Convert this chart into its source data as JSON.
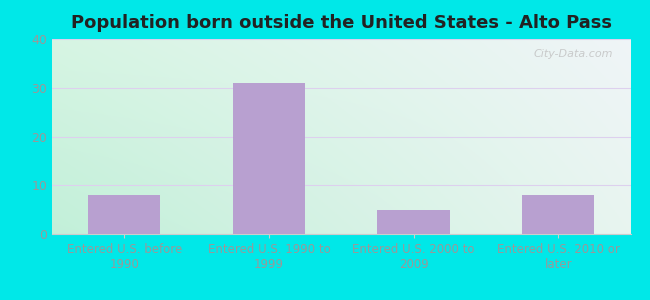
{
  "title": "Population born outside the United States - Alto Pass",
  "categories": [
    "Entered U.S. before\n1990",
    "Entered U.S. 1990 to\n1999",
    "Entered U.S. 2000 to\n2009",
    "Entered U.S. 2010 or\nlater"
  ],
  "values": [
    8,
    31,
    5,
    8
  ],
  "bar_color": "#b8a0d0",
  "ylim": [
    0,
    40
  ],
  "yticks": [
    0,
    10,
    20,
    30,
    40
  ],
  "background_outer": "#00e8e8",
  "bg_color_topleft": "#d6f5e3",
  "bg_color_topright": "#f0f5f8",
  "bg_color_bottomleft": "#c2f0d8",
  "bg_color_bottomright": "#e8f5ef",
  "grid_color": "#ddd0ee",
  "title_fontsize": 13,
  "tick_label_color": "#999999",
  "xlabel_color": "#999999",
  "watermark": "City-Data.com"
}
